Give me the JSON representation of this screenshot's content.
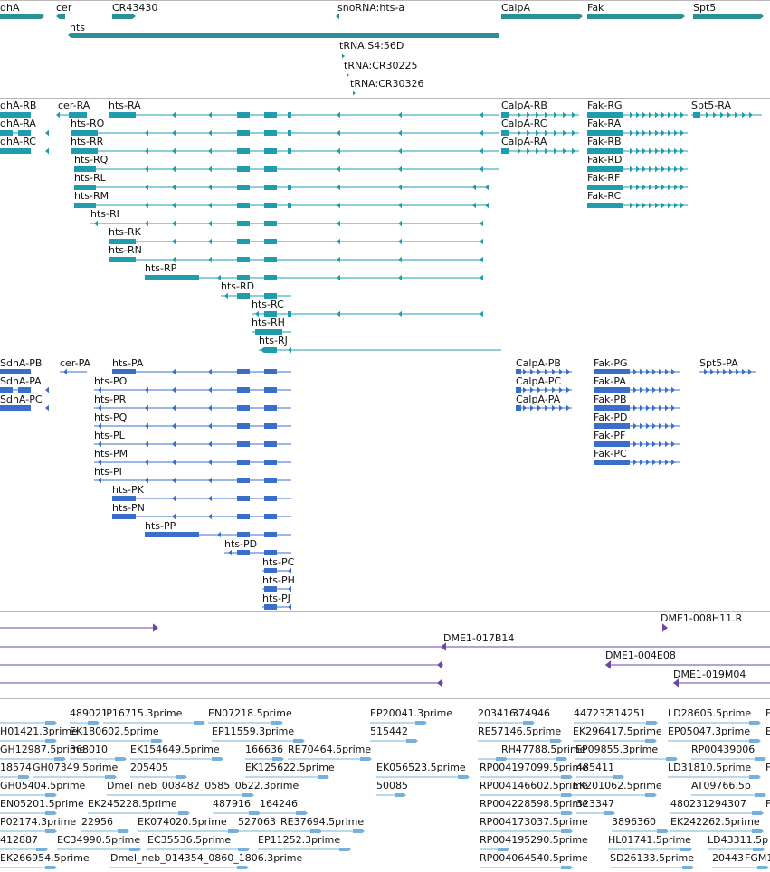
{
  "colors": {
    "gene": "#2a9196",
    "transcript": "#1f9cad",
    "translation": "#3a6fc9",
    "clone": "#6b47a8",
    "est": "#76b0dc",
    "divider": "#b8b8b8",
    "text": "#111111"
  },
  "tracks": {
    "genes": {
      "labels": [
        "dhA",
        "cer",
        "CR43430",
        "snoRNA:hts-a",
        "CalpA",
        "Fak",
        "Spt5",
        "hts",
        "tRNA:S4:56D",
        "tRNA:CR30225",
        "tRNA:CR30326"
      ]
    },
    "transcripts": {
      "labels": [
        "dhA-RB",
        "dhA-RA",
        "dhA-RC",
        "cer-RA",
        "hts-RA",
        "hts-RO",
        "hts-RR",
        "hts-RQ",
        "hts-RL",
        "hts-RM",
        "hts-RI",
        "hts-RK",
        "hts-RN",
        "hts-RP",
        "hts-RD",
        "hts-RC",
        "hts-RH",
        "hts-RJ",
        "CalpA-RB",
        "CalpA-RC",
        "CalpA-RA",
        "Fak-RG",
        "Fak-RA",
        "Fak-RB",
        "Fak-RD",
        "Fak-RF",
        "Fak-RC",
        "Spt5-RA"
      ]
    },
    "translations": {
      "labels": [
        "SdhA-PB",
        "SdhA-PA",
        "SdhA-PC",
        "cer-PA",
        "hts-PA",
        "hts-PO",
        "hts-PR",
        "hts-PQ",
        "hts-PL",
        "hts-PM",
        "hts-PI",
        "hts-PK",
        "hts-PN",
        "hts-PP",
        "hts-PD",
        "hts-PC",
        "hts-PH",
        "hts-PJ",
        "CalpA-PB",
        "CalpA-PC",
        "CalpA-PA",
        "Fak-PG",
        "Fak-PA",
        "Fak-PB",
        "Fak-PD",
        "Fak-PF",
        "Fak-PC",
        "Spt5-PA"
      ]
    },
    "clones": {
      "labels": [
        "DME1-008H11.R",
        "DME1-017B14",
        "DME1-004E08",
        "DME1-019M04"
      ]
    },
    "ests": {
      "labels": [
        "489021",
        "IP16715.3prime",
        "EN07218.5prime",
        "EP20041.3prime",
        "203416",
        "374946",
        "447232",
        "314251",
        "LD28605.5prime",
        "E",
        "H01421.3prime",
        "EK180602.5prime",
        "EP11559.3prime",
        "515442",
        "RE57146.5prime",
        "EK296417.5prime",
        "EP05047.3prime",
        "E",
        "GH12987.5prime",
        "368010",
        "EK154649.5prime",
        "166636",
        "RE70464.5prime",
        "RH47788.5prime",
        "EP09855.3prime",
        "RP00439006",
        "18574",
        "GH07349.5prime",
        "205405",
        "EK125622.5prime",
        "EK056523.5prime",
        "RP004197099.5prime",
        "485411",
        "LD31810.5prime",
        "F",
        "GH05404.5prime",
        "Dmel_neb_008482_0585_0622.3prime",
        "50085",
        "RP004146602.5prime",
        "EK201062.5prime",
        "AT09766.5p",
        "EN05201.5prime",
        "EK245228.5prime",
        "487916",
        "164246",
        "RP004228598.5prime",
        "323347",
        "480231294307",
        "F",
        "P02174.3prime",
        "22956",
        "EK074020.5prime",
        "527063",
        "RE37694.5prime",
        "RP004173037.5prime",
        "3896360",
        "EK242262.5prime",
        "412887",
        "EC34990.5prime",
        "EC35536.5prime",
        "EP11252.3prime",
        "RP004195290.5prime",
        "HL01741.5prime",
        "LD43311.5p",
        "EK266954.5prime",
        "Dmel_neb_014354_0860_1806.3prime",
        "RP004064540.5prime",
        "SD26133.5prime",
        "20443",
        "FGM1"
      ]
    }
  }
}
